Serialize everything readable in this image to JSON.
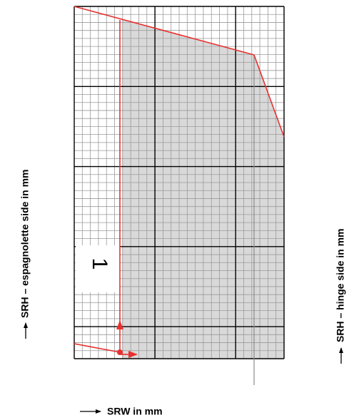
{
  "diagram": {
    "axis_left_label": "SRH – espagnolette side in mm",
    "axis_right_label": "SRH – hinge side in mm",
    "axis_bottom_label": "SRW in mm",
    "region_label": "1",
    "colors": {
      "grid_minor": "#9a9a9a",
      "grid_major": "#000000",
      "region_fill": "#d9d9d9",
      "boundary": "#e8312f",
      "marker_line": "#8a8a8a",
      "background": "#ffffff"
    }
  }
}
